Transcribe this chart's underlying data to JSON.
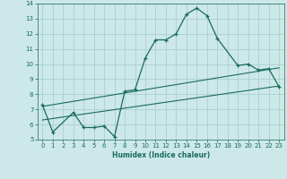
{
  "title": "",
  "xlabel": "Humidex (Indice chaleur)",
  "ylabel": "",
  "bg_color": "#cce8e8",
  "line_color": "#1a6b5a",
  "grid_color": "#aacfcf",
  "xlim": [
    -0.5,
    23.5
  ],
  "ylim": [
    5,
    14
  ],
  "xticks": [
    0,
    1,
    2,
    3,
    4,
    5,
    6,
    7,
    8,
    9,
    10,
    11,
    12,
    13,
    14,
    15,
    16,
    17,
    18,
    19,
    20,
    21,
    22,
    23
  ],
  "yticks": [
    5,
    6,
    7,
    8,
    9,
    10,
    11,
    12,
    13,
    14
  ],
  "main_x": [
    0,
    1,
    3,
    4,
    5,
    6,
    7,
    8,
    9,
    10,
    11,
    12,
    13,
    14,
    15,
    16,
    17,
    19,
    20,
    21,
    22,
    23
  ],
  "main_y": [
    7.3,
    5.5,
    6.8,
    5.8,
    5.8,
    5.9,
    5.2,
    8.2,
    8.3,
    10.4,
    11.6,
    11.6,
    12.0,
    13.3,
    13.7,
    13.2,
    11.7,
    9.9,
    10.0,
    9.6,
    9.7,
    8.5
  ],
  "trend1_x": [
    0,
    23
  ],
  "trend1_y": [
    7.2,
    9.75
  ],
  "trend2_x": [
    0,
    23
  ],
  "trend2_y": [
    6.3,
    8.55
  ]
}
